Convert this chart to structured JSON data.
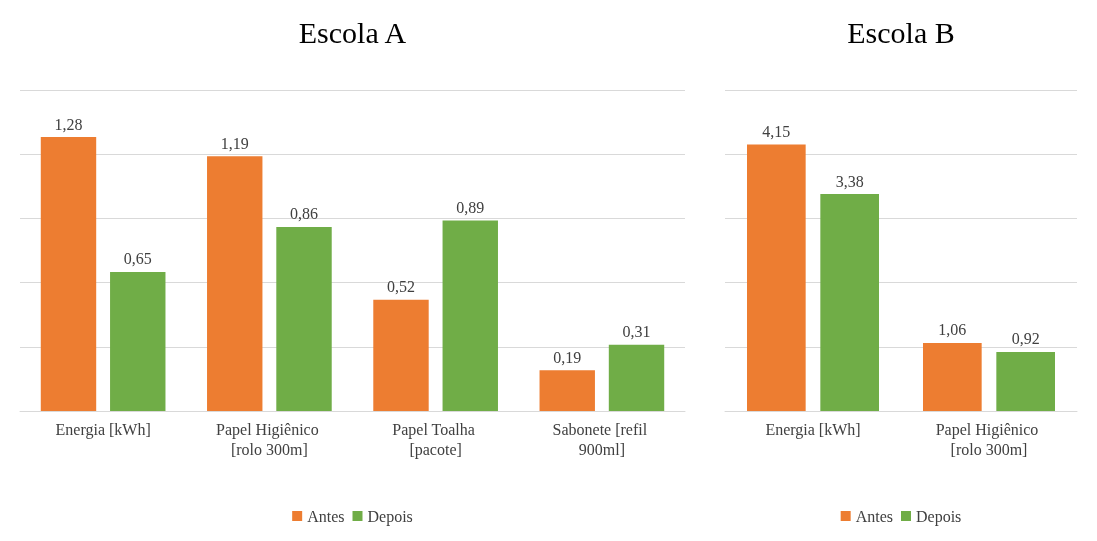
{
  "chart_data": [
    {
      "type": "bar",
      "title": "Escola A",
      "categories": [
        "Energia [kWh]",
        "Papel Higiênico [rolo 300m]",
        "Papel Toalha [pacote]",
        "Sabonete [refil 900ml]"
      ],
      "series": [
        {
          "name": "Antes",
          "color": "#ed7d31",
          "values": [
            1.28,
            1.19,
            0.52,
            0.19
          ],
          "value_labels": [
            "1,28",
            "1,19",
            "0,52",
            "0,19"
          ]
        },
        {
          "name": "Depois",
          "color": "#70ad47",
          "values": [
            0.65,
            0.86,
            0.89,
            0.31
          ],
          "value_labels": [
            "0,65",
            "0,86",
            "0,89",
            "0,31"
          ]
        }
      ],
      "tick_labels": "x",
      "grid": "y",
      "legend": "bottom"
    },
    {
      "type": "bar",
      "title": "Escola B",
      "categories": [
        "Energia [kWh]",
        "Papel Higiênico [rolo 300m]"
      ],
      "series": [
        {
          "name": "Antes",
          "color": "#ed7d31",
          "values": [
            4.15,
            1.06
          ],
          "value_labels": [
            "4,15",
            "1,06"
          ]
        },
        {
          "name": "Depois",
          "color": "#70ad47",
          "values": [
            3.38,
            0.92
          ],
          "value_labels": [
            "3,38",
            "0,92"
          ]
        }
      ],
      "tick_labels": "x",
      "grid": "y",
      "legend": "bottom"
    }
  ]
}
